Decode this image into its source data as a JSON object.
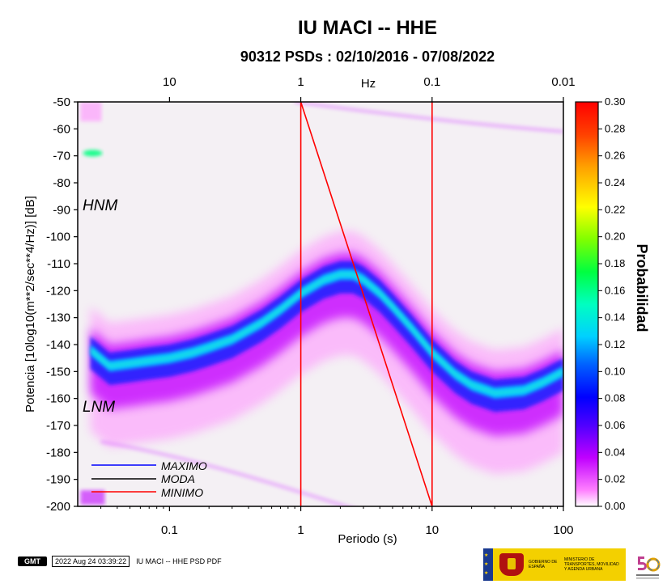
{
  "chart_data": {
    "type": "heatmap",
    "title": "IU MACI -- HHE",
    "subtitle": "90312 PSDs : 02/10/2016 - 07/08/2022",
    "xlabel": "Periodo (s)",
    "ylabel": "Potencia [10log10(m**2/sec**4/Hz)] [dB]",
    "top_axis_label": "Hz",
    "x_scale": "log",
    "xlim": [
      0.02,
      100
    ],
    "ylim": [
      -200,
      -50
    ],
    "x_ticks": [
      "0.1",
      "1",
      "10",
      "100"
    ],
    "top_ticks": [
      "10",
      "1",
      "0.1",
      "0.01"
    ],
    "y_ticks": [
      "-50",
      "-60",
      "-70",
      "-80",
      "-90",
      "-100",
      "-110",
      "-120",
      "-130",
      "-140",
      "-150",
      "-160",
      "-170",
      "-180",
      "-190",
      "-200"
    ],
    "colorbar": {
      "label": "Probabilidad",
      "range": [
        0.0,
        0.3
      ],
      "ticks": [
        "0.30",
        "0.28",
        "0.26",
        "0.24",
        "0.22",
        "0.20",
        "0.18",
        "0.16",
        "0.14",
        "0.12",
        "0.10",
        "0.08",
        "0.06",
        "0.04",
        "0.02",
        "0.00"
      ]
    },
    "mode_curve": {
      "period": [
        0.025,
        0.035,
        0.05,
        0.07,
        0.1,
        0.15,
        0.2,
        0.3,
        0.5,
        0.7,
        1.0,
        1.5,
        2.0,
        2.5,
        3.0,
        4.0,
        5.0,
        7.0,
        10.0,
        15.0,
        20.0,
        30.0,
        50.0,
        70.0,
        100.0
      ],
      "power": [
        -142,
        -148,
        -147,
        -146,
        -145,
        -143,
        -141,
        -138,
        -132,
        -127,
        -121,
        -116,
        -114,
        -114,
        -116,
        -121,
        -126,
        -134,
        -143,
        -151,
        -155,
        -158,
        -157,
        -154,
        -150
      ]
    },
    "noise_models": [
      {
        "name": "HNM"
      },
      {
        "name": "LNM"
      }
    ],
    "legend": [
      {
        "name": "MAXIMO",
        "color": "#0000ff"
      },
      {
        "name": "MODA",
        "color": "#000000"
      },
      {
        "name": "MINIMO",
        "color": "#ff0000"
      }
    ],
    "minimum_line": {
      "color": "#ff0000",
      "points": [
        [
          1.0,
          -200
        ],
        [
          1.0,
          -50
        ],
        [
          10.0,
          -200
        ],
        [
          10.0,
          -50
        ]
      ]
    }
  },
  "footer": {
    "logo_text": "GMT",
    "timestamp": "2022 Aug 24 03:39:22",
    "filename": "IU MACI -- HHE PSD PDF"
  },
  "logos": {
    "gov_line1": "GOBIERNO DE ESPAÑA",
    "gov_line2": "MINISTERIO DE TRANSPORTES, MOVILIDAD Y AGENDA URBANA"
  }
}
